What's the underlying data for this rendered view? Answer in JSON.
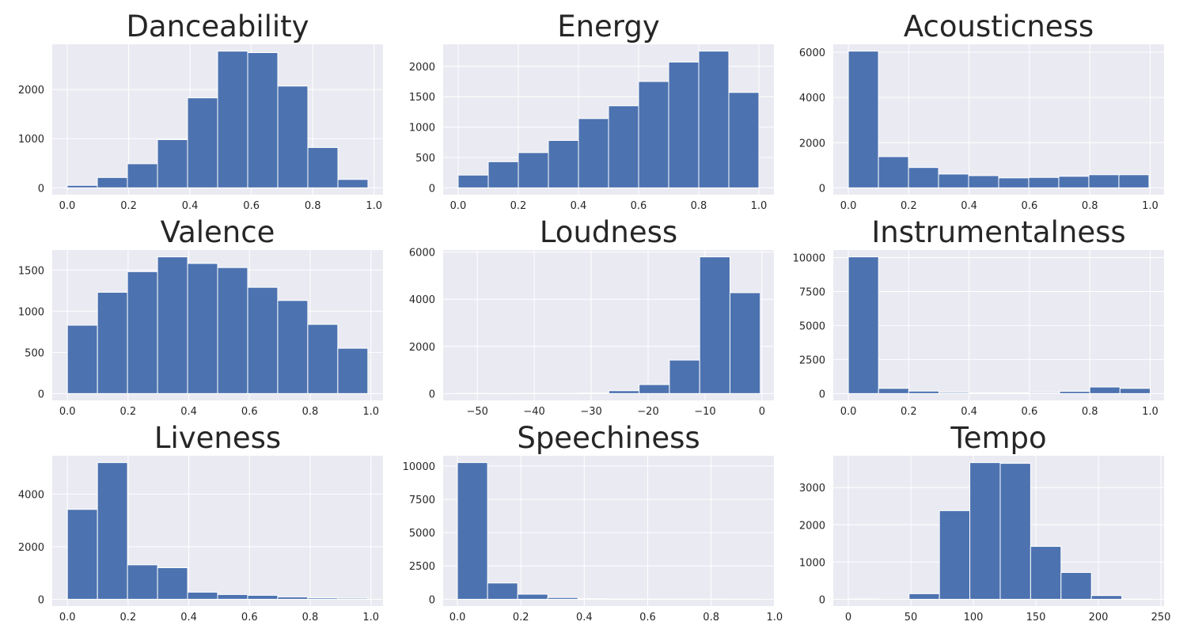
{
  "chart_data": [
    {
      "type": "histogram",
      "title": "Danceability",
      "bins": [
        0,
        0.098,
        0.196,
        0.294,
        0.392,
        0.49,
        0.588,
        0.686,
        0.784,
        0.882,
        0.98
      ],
      "counts": [
        50,
        210,
        490,
        980,
        1830,
        2780,
        2750,
        2070,
        820,
        170
      ],
      "color": "#4c72b0",
      "xlim": [
        -0.049,
        1.029
      ],
      "ylim": [
        -139,
        2919
      ],
      "xticks": [
        {
          "value": 0,
          "label": "0.0"
        },
        0.2,
        0.4,
        0.6,
        0.8,
        {
          "value": 1,
          "label": "1.0"
        }
      ],
      "yticks": [
        0,
        1000,
        2000
      ],
      "grid": true
    },
    {
      "type": "histogram",
      "title": "Energy",
      "bins": [
        0,
        0.1,
        0.2,
        0.3,
        0.4,
        0.5,
        0.6,
        0.7,
        0.8,
        0.9,
        1
      ],
      "counts": [
        210,
        430,
        580,
        780,
        1140,
        1350,
        1750,
        2070,
        2250,
        1570
      ],
      "color": "#4c72b0",
      "xlim": [
        -0.05,
        1.05
      ],
      "ylim": [
        -112,
        2362
      ],
      "xticks": [
        {
          "value": 0,
          "label": "0.0"
        },
        0.2,
        0.4,
        0.6,
        0.8,
        {
          "value": 1,
          "label": "1.0"
        }
      ],
      "yticks": [
        0,
        500,
        1000,
        1500,
        2000
      ],
      "grid": true
    },
    {
      "type": "histogram",
      "title": "Acousticness",
      "bins": [
        0,
        0.0996,
        0.1992,
        0.2988,
        0.3984,
        0.498,
        0.5976,
        0.6972,
        0.7968,
        0.8964,
        0.996
      ],
      "counts": [
        6050,
        1380,
        900,
        610,
        540,
        440,
        460,
        510,
        580,
        580
      ],
      "color": "#4c72b0",
      "xlim": [
        -0.05,
        1.046
      ],
      "ylim": [
        -302,
        6352
      ],
      "xticks": [
        {
          "value": 0,
          "label": "0.0"
        },
        0.2,
        0.4,
        0.6,
        0.8,
        {
          "value": 1,
          "label": "1.0"
        }
      ],
      "yticks": [
        0,
        2000,
        4000,
        6000
      ],
      "grid": true
    },
    {
      "type": "histogram",
      "title": "Valence",
      "bins": [
        0,
        0.099,
        0.198,
        0.297,
        0.396,
        0.495,
        0.594,
        0.693,
        0.792,
        0.891,
        0.99
      ],
      "counts": [
        830,
        1230,
        1480,
        1660,
        1580,
        1530,
        1290,
        1130,
        840,
        550
      ],
      "color": "#4c72b0",
      "xlim": [
        -0.05,
        1.04
      ],
      "ylim": [
        -83,
        1743
      ],
      "xticks": [
        {
          "value": 0,
          "label": "0.0"
        },
        0.2,
        0.4,
        0.6,
        0.8,
        {
          "value": 1,
          "label": "1.0"
        }
      ],
      "yticks": [
        0,
        500,
        1000,
        1500
      ],
      "grid": true
    },
    {
      "type": "histogram",
      "title": "Loudness",
      "bins": [
        -53.5,
        -48.18,
        -42.86,
        -37.54,
        -32.22,
        -26.9,
        -21.58,
        -16.26,
        -10.94,
        -5.62,
        -0.3
      ],
      "counts": [
        2,
        1,
        3,
        8,
        20,
        120,
        380,
        1420,
        5800,
        4280
      ],
      "color": "#4c72b0",
      "xlim": [
        -56,
        2.1
      ],
      "ylim": [
        -290,
        6090
      ],
      "xticks": [
        {
          "value": -50,
          "label": "−50"
        },
        {
          "value": -40,
          "label": "−40"
        },
        {
          "value": -30,
          "label": "−30"
        },
        {
          "value": -20,
          "label": "−20"
        },
        {
          "value": -10,
          "label": "−10"
        },
        0
      ],
      "yticks": [
        0,
        2000,
        4000,
        6000
      ],
      "grid": true
    },
    {
      "type": "histogram",
      "title": "Instrumentalness",
      "bins": [
        0,
        0.1,
        0.2,
        0.3,
        0.4,
        0.5,
        0.6,
        0.7,
        0.8,
        0.9,
        1
      ],
      "counts": [
        10050,
        380,
        180,
        80,
        60,
        50,
        70,
        160,
        480,
        380
      ],
      "color": "#4c72b0",
      "xlim": [
        -0.05,
        1.046
      ],
      "ylim": [
        -502,
        10552
      ],
      "xticks": [
        {
          "value": 0,
          "label": "0.0"
        },
        0.2,
        0.4,
        0.6,
        0.8,
        {
          "value": 1,
          "label": "1.0"
        }
      ],
      "yticks": [
        0,
        2500,
        5000,
        7500,
        10000
      ],
      "grid": true
    },
    {
      "type": "histogram",
      "title": "Liveness",
      "bins": [
        0,
        0.099,
        0.198,
        0.297,
        0.396,
        0.495,
        0.594,
        0.693,
        0.792,
        0.891,
        0.99
      ],
      "counts": [
        3420,
        5200,
        1310,
        1200,
        270,
        180,
        150,
        90,
        50,
        40
      ],
      "color": "#4c72b0",
      "xlim": [
        -0.05,
        1.04
      ],
      "ylim": [
        -260,
        5460
      ],
      "xticks": [
        {
          "value": 0,
          "label": "0.0"
        },
        0.2,
        0.4,
        0.6,
        0.8,
        {
          "value": 1,
          "label": "1.0"
        }
      ],
      "yticks": [
        0,
        2000,
        4000
      ],
      "grid": true
    },
    {
      "type": "histogram",
      "title": "Speechiness",
      "bins": [
        0,
        0.095,
        0.19,
        0.285,
        0.38,
        0.475,
        0.57,
        0.665,
        0.76,
        0.855,
        0.95
      ],
      "counts": [
        10250,
        1220,
        380,
        130,
        40,
        20,
        10,
        5,
        3,
        2
      ],
      "color": "#4c72b0",
      "xlim": [
        -0.045,
        0.998
      ],
      "ylim": [
        -512,
        10762
      ],
      "xticks": [
        {
          "value": 0,
          "label": "0.0"
        },
        0.2,
        0.4,
        0.6,
        0.8,
        {
          "value": 1,
          "label": "1.0"
        }
      ],
      "yticks": [
        0,
        2500,
        5000,
        7500,
        10000
      ],
      "grid": true
    },
    {
      "type": "histogram",
      "title": "Tempo",
      "bins": [
        0,
        24.3,
        48.6,
        72.9,
        97.2,
        121.5,
        145.8,
        170.1,
        194.4,
        218.7,
        243
      ],
      "counts": [
        10,
        0,
        150,
        2380,
        3670,
        3650,
        1420,
        720,
        100,
        5
      ],
      "color": "#4c72b0",
      "xlim": [
        -12,
        252.5
      ],
      "ylim": [
        -183,
        3854
      ],
      "xticks": [
        0,
        50,
        100,
        150,
        200,
        250
      ],
      "yticks": [
        0,
        1000,
        2000,
        3000
      ],
      "grid": true
    }
  ]
}
